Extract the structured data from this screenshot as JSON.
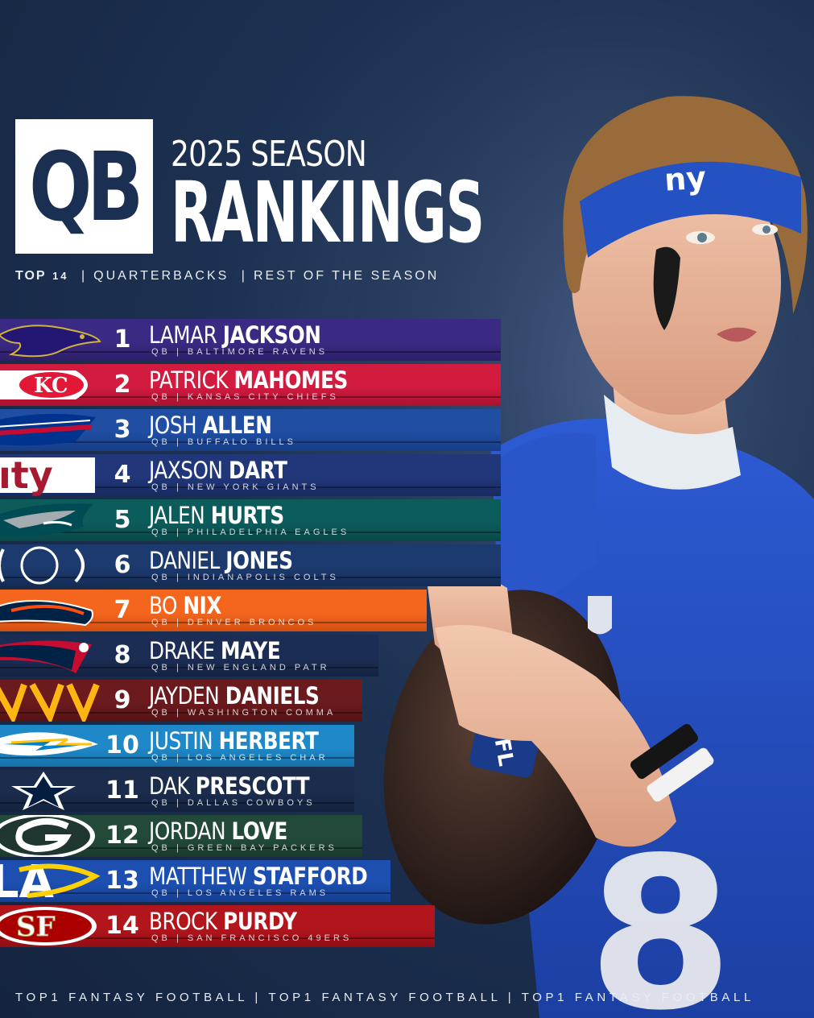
{
  "header": {
    "badge": "QB",
    "season": "2025 SEASON",
    "title": "RANKINGS",
    "subtitle_top": "TOP",
    "subtitle_top_num": "14",
    "subtitle_sep1": "|",
    "subtitle_mid": "QUARTERBACKS",
    "subtitle_sep2": "|",
    "subtitle_end": "REST OF THE SEASON"
  },
  "rankings": [
    {
      "rank": "1",
      "first": "LAMAR",
      "last": "JACKSON",
      "team": "QB | BALTIMORE RAVENS",
      "color": "#3b2a83",
      "color2": "#2d1f6a",
      "logo": "ravens-logo"
    },
    {
      "rank": "2",
      "first": "PATRICK",
      "last": "MAHOMES",
      "team": "QB | KANSAS CITY CHIEFS",
      "color": "#d31a3f",
      "color2": "#a9122f",
      "logo": "chiefs-logo"
    },
    {
      "rank": "3",
      "first": "JOSH",
      "last": "ALLEN",
      "team": "QB | BUFFALO BILLS",
      "color": "#1f4ea3",
      "color2": "#173d85",
      "logo": "bills-logo"
    },
    {
      "rank": "4",
      "first": "JAXSON",
      "last": "DART",
      "team": "QB | NEW YORK GIANTS",
      "color": "#21377a",
      "color2": "#182a60",
      "logo": "giants-logo"
    },
    {
      "rank": "5",
      "first": "JALEN",
      "last": "HURTS",
      "team": "QB | PHILADELPHIA EAGLES",
      "color": "#0d5c5c",
      "color2": "#0a4848",
      "logo": "eagles-logo"
    },
    {
      "rank": "6",
      "first": "DANIEL",
      "last": "JONES",
      "team": "QB | INDIANAPOLIS COLTS",
      "color": "#1d3a6e",
      "color2": "#142c56",
      "logo": "colts-logo"
    },
    {
      "rank": "7",
      "first": "BO",
      "last": "NIX",
      "team": "QB | DENVER BRONCOS",
      "color": "#f4661e",
      "color2": "#d24f10",
      "logo": "broncos-logo"
    },
    {
      "rank": "8",
      "first": "DRAKE",
      "last": "MAYE",
      "team": "QB | NEW ENGLAND PATR",
      "color": "#1c2d55",
      "color2": "#142242",
      "logo": "patriots-logo"
    },
    {
      "rank": "9",
      "first": "JAYDEN",
      "last": "DANIELS",
      "team": "QB | WASHINGTON COMMA",
      "color": "#6b1a1e",
      "color2": "#561316",
      "logo": "commanders-logo"
    },
    {
      "rank": "10",
      "first": "JUSTIN",
      "last": "HERBERT",
      "team": "QB | LOS ANGELES CHAR",
      "color": "#1e88c8",
      "color2": "#1670a8",
      "logo": "chargers-logo"
    },
    {
      "rank": "11",
      "first": "DAK",
      "last": "PRESCOTT",
      "team": "QB | DALLAS COWBOYS",
      "color": "#1b2c4d",
      "color2": "#13223d",
      "logo": "cowboys-logo"
    },
    {
      "rank": "12",
      "first": "JORDAN",
      "last": "LOVE",
      "team": "QB | GREEN BAY PACKERS",
      "color": "#234a38",
      "color2": "#1a3a2b",
      "logo": "packers-logo"
    },
    {
      "rank": "13",
      "first": "MATTHEW",
      "last": "STAFFORD",
      "team": "QB | LOS ANGELES RAMS",
      "color": "#1d4fb0",
      "color2": "#163f90",
      "logo": "rams-logo"
    },
    {
      "rank": "14",
      "first": "BROCK",
      "last": "PURDY",
      "team": "QB | SAN FRANCISCO 49ERS",
      "color": "#b3151c",
      "color2": "#8f0f15",
      "logo": "49ers-logo"
    }
  ],
  "footer": "TOP1 FANTASY FOOTBALL  |  TOP1 FANTASY FOOTBALL  |  TOP1 FANTASY FOOTBALL"
}
